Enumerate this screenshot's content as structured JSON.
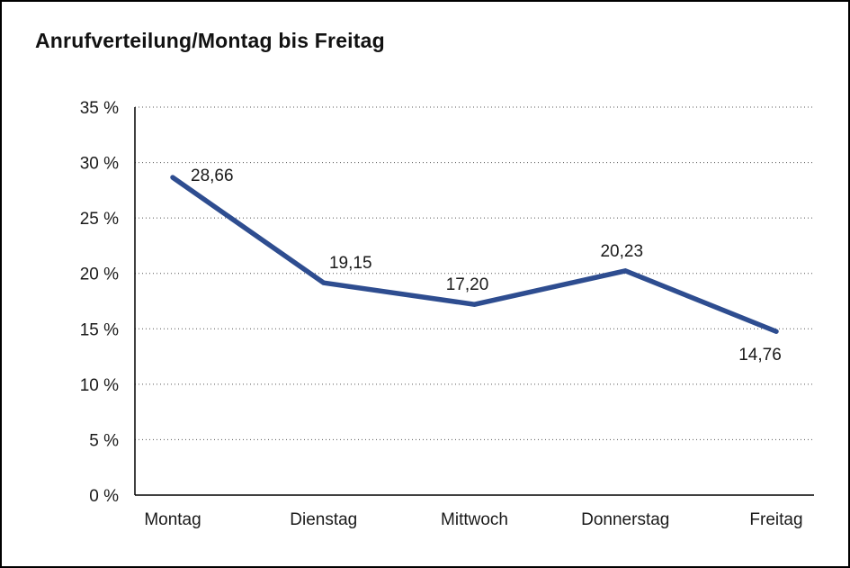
{
  "chart_data": {
    "type": "line",
    "title": "Anrufverteilung/Montag bis Freitag",
    "categories": [
      "Montag",
      "Dienstag",
      "Mittwoch",
      "Donnerstag",
      "Freitag"
    ],
    "values": [
      28.66,
      19.15,
      17.2,
      20.23,
      14.76
    ],
    "value_labels": [
      "28,66",
      "19,15",
      "17,20",
      "20,23",
      "14,76"
    ],
    "xlabel": "",
    "ylabel": "",
    "ylim": [
      0,
      35
    ],
    "ytick_step": 5,
    "ytick_suffix": " %",
    "ytick_labels": [
      "0 %",
      "5 %",
      "10 %",
      "15 %",
      "20 %",
      "25 %",
      "30 %",
      "35 %"
    ],
    "grid": "horizontal-dotted",
    "legend": "none",
    "line_color": "#2e4d90",
    "axis_color": "#000000",
    "grid_color": "#555555",
    "background": "#ffffff"
  }
}
